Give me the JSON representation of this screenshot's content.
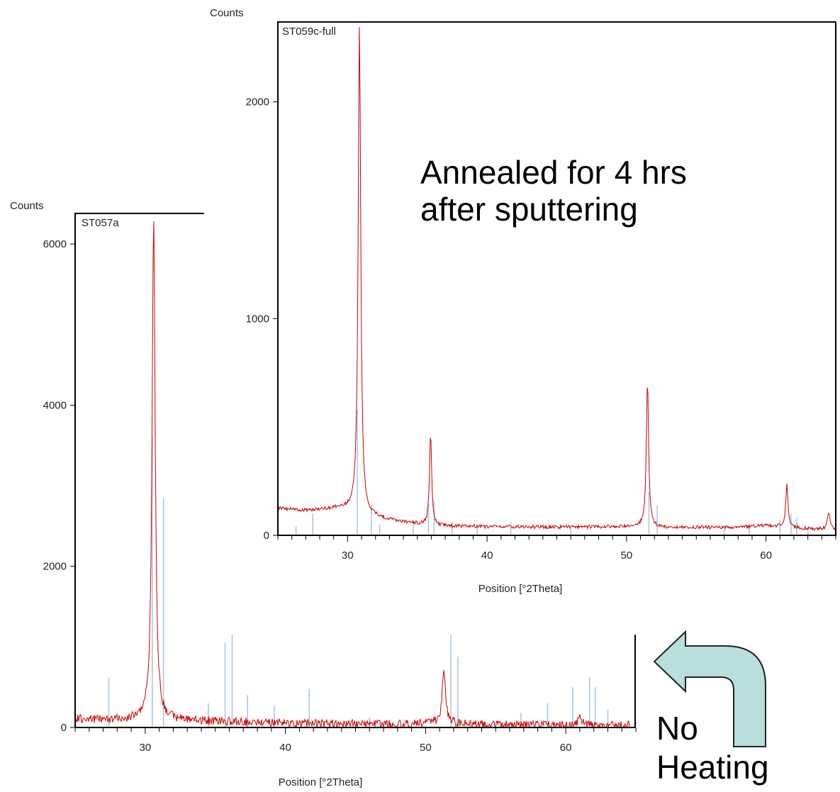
{
  "annotations": {
    "annealed_line1": "Annealed for 4 hrs",
    "annealed_line2": "after sputtering",
    "noheat_line1": "No",
    "noheat_line2": "Heating"
  },
  "chart_data": [
    {
      "id": "back",
      "type": "line",
      "title": "ST057a",
      "xlabel": "Position [°2Theta]",
      "ylabel": "Counts",
      "xlim": [
        25,
        65
      ],
      "ylim": [
        0,
        6380
      ],
      "xticks": [
        30,
        40,
        50,
        60
      ],
      "yticks": [
        0,
        2000,
        4000,
        6000
      ],
      "series_color": "#cc0000",
      "reference_color": "#aac8e0",
      "baseline": [
        [
          25,
          110
        ],
        [
          28,
          95
        ],
        [
          29.5,
          105
        ],
        [
          32,
          90
        ],
        [
          40,
          55
        ],
        [
          48,
          40
        ],
        [
          50,
          60
        ],
        [
          54,
          35
        ],
        [
          58,
          30
        ],
        [
          62,
          28
        ],
        [
          65,
          25
        ]
      ],
      "peaks": [
        {
          "x": 30.6,
          "height": 6280,
          "width": 0.26
        },
        {
          "x": 51.3,
          "height": 680,
          "width": 0.28
        },
        {
          "x": 61.0,
          "height": 110,
          "width": 0.3
        }
      ],
      "reference_lines": [
        {
          "x": 27.4,
          "y": 620
        },
        {
          "x": 30.5,
          "y": 3600
        },
        {
          "x": 31.3,
          "y": 2850
        },
        {
          "x": 34.5,
          "y": 300
        },
        {
          "x": 35.7,
          "y": 1050
        },
        {
          "x": 36.2,
          "y": 1150
        },
        {
          "x": 37.3,
          "y": 400
        },
        {
          "x": 39.2,
          "y": 270
        },
        {
          "x": 41.7,
          "y": 480
        },
        {
          "x": 46.0,
          "y": 130
        },
        {
          "x": 51.8,
          "y": 1150
        },
        {
          "x": 52.3,
          "y": 880
        },
        {
          "x": 56.8,
          "y": 180
        },
        {
          "x": 58.7,
          "y": 300
        },
        {
          "x": 60.5,
          "y": 500
        },
        {
          "x": 61.7,
          "y": 620
        },
        {
          "x": 62.1,
          "y": 500
        },
        {
          "x": 63.0,
          "y": 220
        }
      ]
    },
    {
      "id": "front",
      "type": "line",
      "title": "ST059c-full",
      "xlabel": "Position [°2Theta]",
      "ylabel": "Counts",
      "xlim": [
        25,
        65
      ],
      "ylim": [
        0,
        2365
      ],
      "xticks": [
        30,
        40,
        50,
        60
      ],
      "yticks": [
        0,
        1000,
        2000
      ],
      "series_color": "#cc0000",
      "reference_color": "#aac8e0",
      "baseline": [
        [
          25,
          125
        ],
        [
          27,
          115
        ],
        [
          29.5,
          125
        ],
        [
          31.5,
          90
        ],
        [
          33,
          70
        ],
        [
          36,
          45
        ],
        [
          40,
          40
        ],
        [
          46,
          38
        ],
        [
          50,
          40
        ],
        [
          53,
          35
        ],
        [
          58,
          38
        ],
        [
          60,
          45
        ],
        [
          63,
          30
        ],
        [
          65,
          25
        ]
      ],
      "peaks": [
        {
          "x": 30.85,
          "height": 2250,
          "width": 0.22
        },
        {
          "x": 35.95,
          "height": 435,
          "width": 0.18
        },
        {
          "x": 51.5,
          "height": 675,
          "width": 0.2
        },
        {
          "x": 61.5,
          "height": 195,
          "width": 0.2
        },
        {
          "x": 64.5,
          "height": 80,
          "width": 0.25
        }
      ],
      "reference_lines": [
        {
          "x": 26.3,
          "y": 40
        },
        {
          "x": 27.5,
          "y": 100
        },
        {
          "x": 30.7,
          "y": 580
        },
        {
          "x": 31.7,
          "y": 140
        },
        {
          "x": 32.3,
          "y": 50
        },
        {
          "x": 34.7,
          "y": 50
        },
        {
          "x": 35.8,
          "y": 150
        },
        {
          "x": 36.2,
          "y": 160
        },
        {
          "x": 37.5,
          "y": 60
        },
        {
          "x": 39.3,
          "y": 40
        },
        {
          "x": 41.7,
          "y": 60
        },
        {
          "x": 46.0,
          "y": 30
        },
        {
          "x": 51.6,
          "y": 200
        },
        {
          "x": 52.2,
          "y": 140
        },
        {
          "x": 57.0,
          "y": 30
        },
        {
          "x": 58.8,
          "y": 40
        },
        {
          "x": 61.0,
          "y": 70
        },
        {
          "x": 61.8,
          "y": 100
        },
        {
          "x": 62.2,
          "y": 80
        },
        {
          "x": 63.0,
          "y": 30
        }
      ]
    }
  ]
}
